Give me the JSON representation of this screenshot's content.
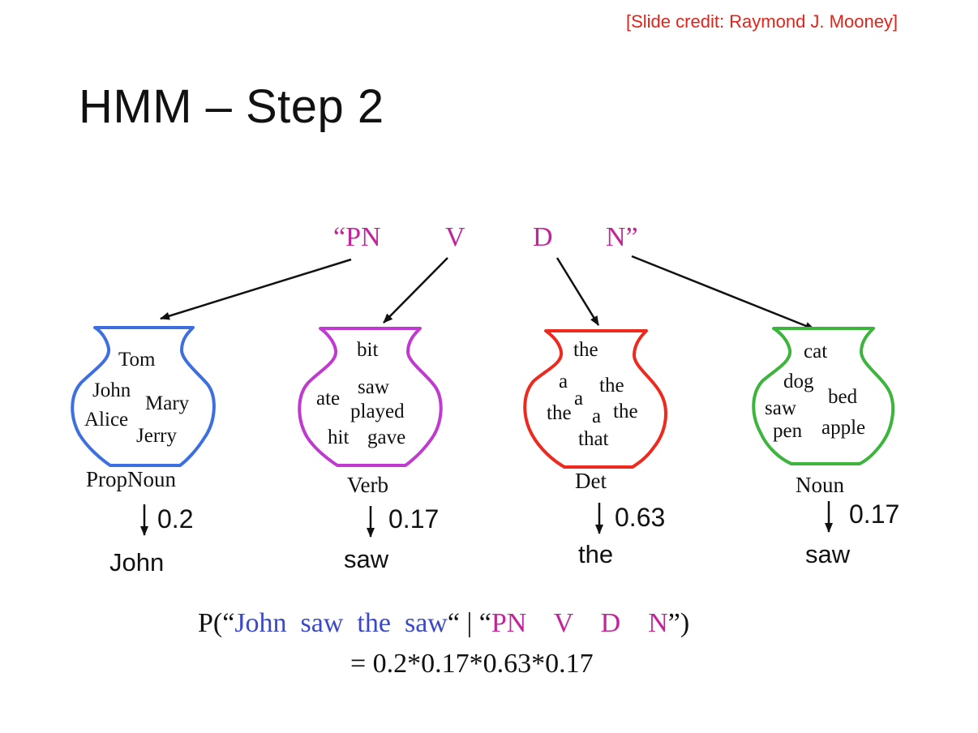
{
  "credit": "[Slide credit: Raymond J. Mooney]",
  "title": "HMM – Step 2",
  "tags": {
    "pn": "“PN",
    "v": "V",
    "d": "D",
    "n": "N”"
  },
  "jars": {
    "propnoun": {
      "words": [
        "Tom",
        "John",
        "Mary",
        "Alice",
        "Jerry"
      ],
      "label": "PropNoun",
      "prob": "0.2",
      "emitted": "John",
      "color": "#3d6fe0"
    },
    "verb": {
      "words": [
        "bit",
        "ate",
        "saw",
        "played",
        "hit",
        "gave"
      ],
      "label": "Verb",
      "prob": "0.17",
      "emitted": "saw",
      "color": "#c03ad0"
    },
    "det": {
      "words": [
        "the",
        "a",
        "the",
        "a",
        "the",
        "a",
        "the",
        "that"
      ],
      "label": "Det",
      "prob": "0.63",
      "emitted": "the",
      "color": "#ee2a1f"
    },
    "noun": {
      "words": [
        "cat",
        "dog",
        "bed",
        "saw",
        "pen",
        "apple"
      ],
      "label": "Noun",
      "prob": "0.17",
      "emitted": "saw",
      "color": "#3db53d"
    }
  },
  "formula": {
    "prefix": "P(“",
    "sentence": "John  saw  the  saw",
    "middle": "“ | “",
    "tags": "PN    V    D    N",
    "suffix": "”)",
    "product": "= 0.2*0.17*0.63*0.17"
  }
}
